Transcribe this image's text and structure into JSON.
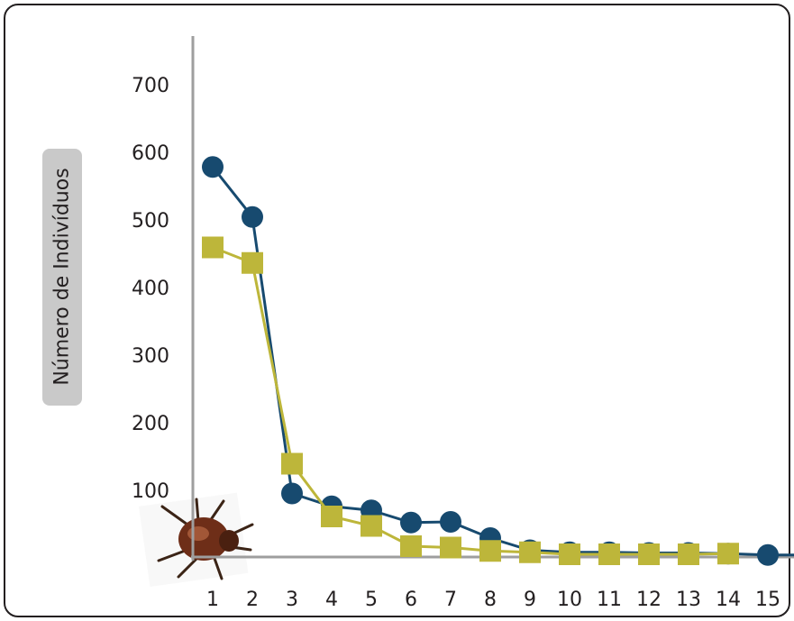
{
  "chart_data": {
    "type": "line",
    "title": "",
    "xlabel": "",
    "ylabel": "Número de Indivíduos",
    "categories": [
      "1",
      "2",
      "3",
      "4",
      "5",
      "6",
      "7",
      "8",
      "9",
      "10",
      "11",
      "12",
      "13",
      "14",
      "15"
    ],
    "y_ticks": [
      "100",
      "200",
      "300",
      "400",
      "500",
      "600",
      "700"
    ],
    "ylim": [
      0,
      800
    ],
    "grid": false,
    "legend": "none",
    "series": [
      {
        "color": "#174a6f",
        "marker": "circle",
        "values": [
          577,
          503,
          94,
          75,
          69,
          51,
          52,
          28,
          10,
          7,
          7,
          6,
          6,
          5,
          3
        ]
      },
      {
        "color": "#bdb63a",
        "marker": "square",
        "values": [
          458,
          435,
          138,
          60,
          46,
          16,
          14,
          9,
          7,
          4,
          4,
          4,
          4,
          5,
          null
        ]
      }
    ]
  },
  "colors": {
    "axis": "#9e9e9e",
    "text": "#231f20",
    "label_background": "#c9c9c9"
  },
  "decoration": {
    "icon": "beetle-icon"
  }
}
